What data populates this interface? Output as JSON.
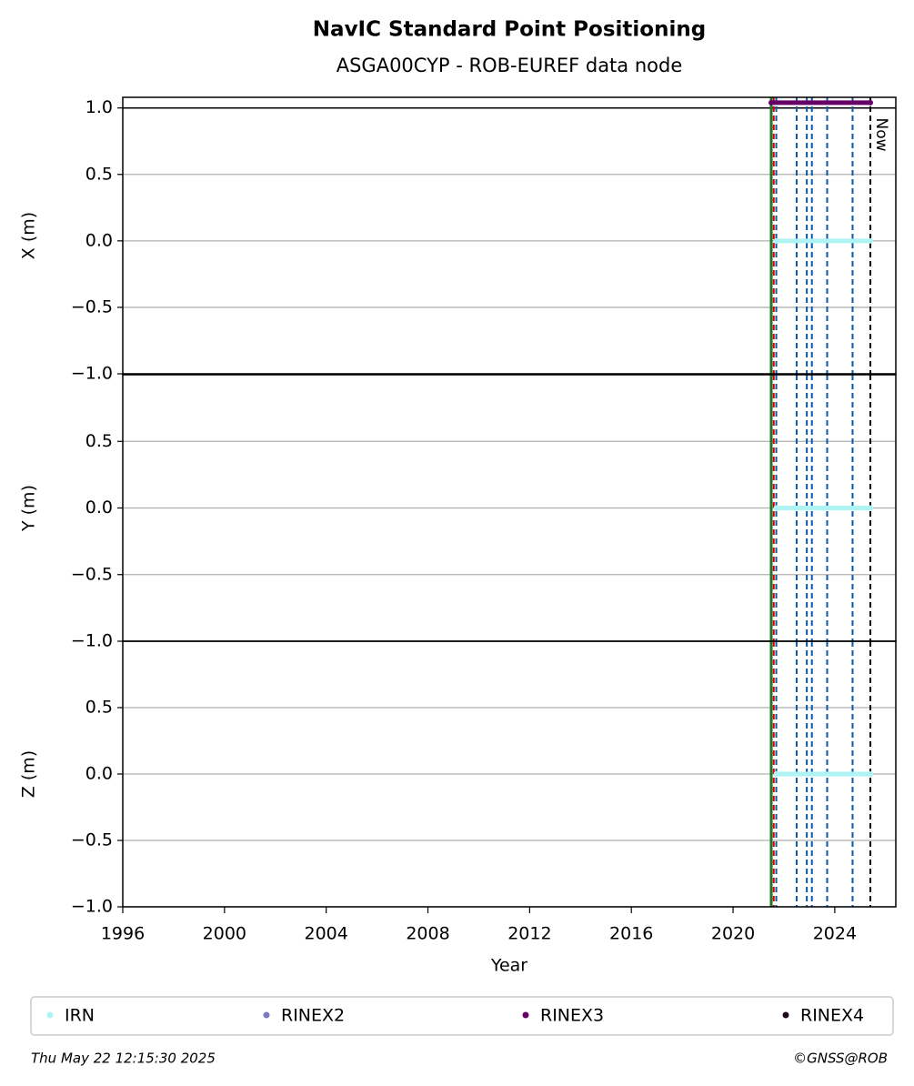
{
  "chart_data": {
    "type": "line",
    "title": "NavIC Standard Point Positioning",
    "subtitle": "ASGA00CYP - ROB-EUREF data node",
    "xlabel": "Year",
    "xlim": [
      1996,
      2026.4
    ],
    "xticks": [
      1996,
      2000,
      2004,
      2008,
      2012,
      2016,
      2020,
      2024
    ],
    "event_lines": [
      {
        "x": 2021.5,
        "color": "#1b7a2a",
        "dashed": false
      },
      {
        "x": 2021.6,
        "color": "#e00000",
        "dashed": true
      },
      {
        "x": 2021.7,
        "color": "#0b58a8",
        "dashed": true
      },
      {
        "x": 2022.5,
        "color": "#0b58a8",
        "dashed": true
      },
      {
        "x": 2022.9,
        "color": "#0b58a8",
        "dashed": true
      },
      {
        "x": 2023.1,
        "color": "#0b58a8",
        "dashed": true
      },
      {
        "x": 2023.7,
        "color": "#0b58a8",
        "dashed": true
      },
      {
        "x": 2024.7,
        "color": "#0b58a8",
        "dashed": true
      }
    ],
    "now": {
      "x": 2025.4,
      "label": "Now"
    },
    "panels": [
      {
        "ylabel": "X (m)",
        "ylim": [
          -1,
          1.08
        ],
        "reference_line": 1.0,
        "yticks": [
          {
            "value": -1.0,
            "label": "−1.0"
          },
          {
            "value": -0.5,
            "label": "−0.5"
          },
          {
            "value": 0.0,
            "label": "0.0"
          },
          0.5,
          {
            "value": 1.0,
            "label": "1.0"
          }
        ],
        "series": [
          {
            "name": "IRN",
            "color": "#aef4f4",
            "x": [
              2021.7,
              2025.4
            ],
            "values": [
              0,
              0
            ]
          },
          {
            "name": "RINEX3",
            "color": "#660066",
            "x": [
              2021.5,
              2025.4
            ],
            "values": [
              1.04,
              1.04
            ]
          }
        ]
      },
      {
        "ylabel": "Y (m)",
        "ylim": [
          -1,
          1
        ],
        "yticks": [
          {
            "value": -1.0,
            "label": "−1.0"
          },
          {
            "value": -0.5,
            "label": "−0.5"
          },
          {
            "value": 0.0,
            "label": "0.0"
          },
          0.5
        ],
        "series": [
          {
            "name": "IRN",
            "color": "#aef4f4",
            "x": [
              2021.7,
              2025.4
            ],
            "values": [
              0,
              0
            ]
          }
        ]
      },
      {
        "ylabel": "Z (m)",
        "ylim": [
          -1,
          1
        ],
        "yticks": [
          {
            "value": -1.0,
            "label": "−1.0"
          },
          {
            "value": -0.5,
            "label": "−0.5"
          },
          {
            "value": 0.0,
            "label": "0.0"
          },
          0.5
        ],
        "series": [
          {
            "name": "IRN",
            "color": "#aef4f4",
            "x": [
              2021.7,
              2025.4
            ],
            "values": [
              0,
              0
            ]
          }
        ]
      }
    ],
    "legend": [
      {
        "name": "IRN",
        "color": "#aef4f4"
      },
      {
        "name": "RINEX2",
        "color": "#7b7bc0"
      },
      {
        "name": "RINEX3",
        "color": "#660066"
      },
      {
        "name": "RINEX4",
        "color": "#1a0a1a"
      }
    ],
    "footer_left": "Thu May 22 12:15:30 2025",
    "footer_right": "©GNSS@ROB"
  }
}
